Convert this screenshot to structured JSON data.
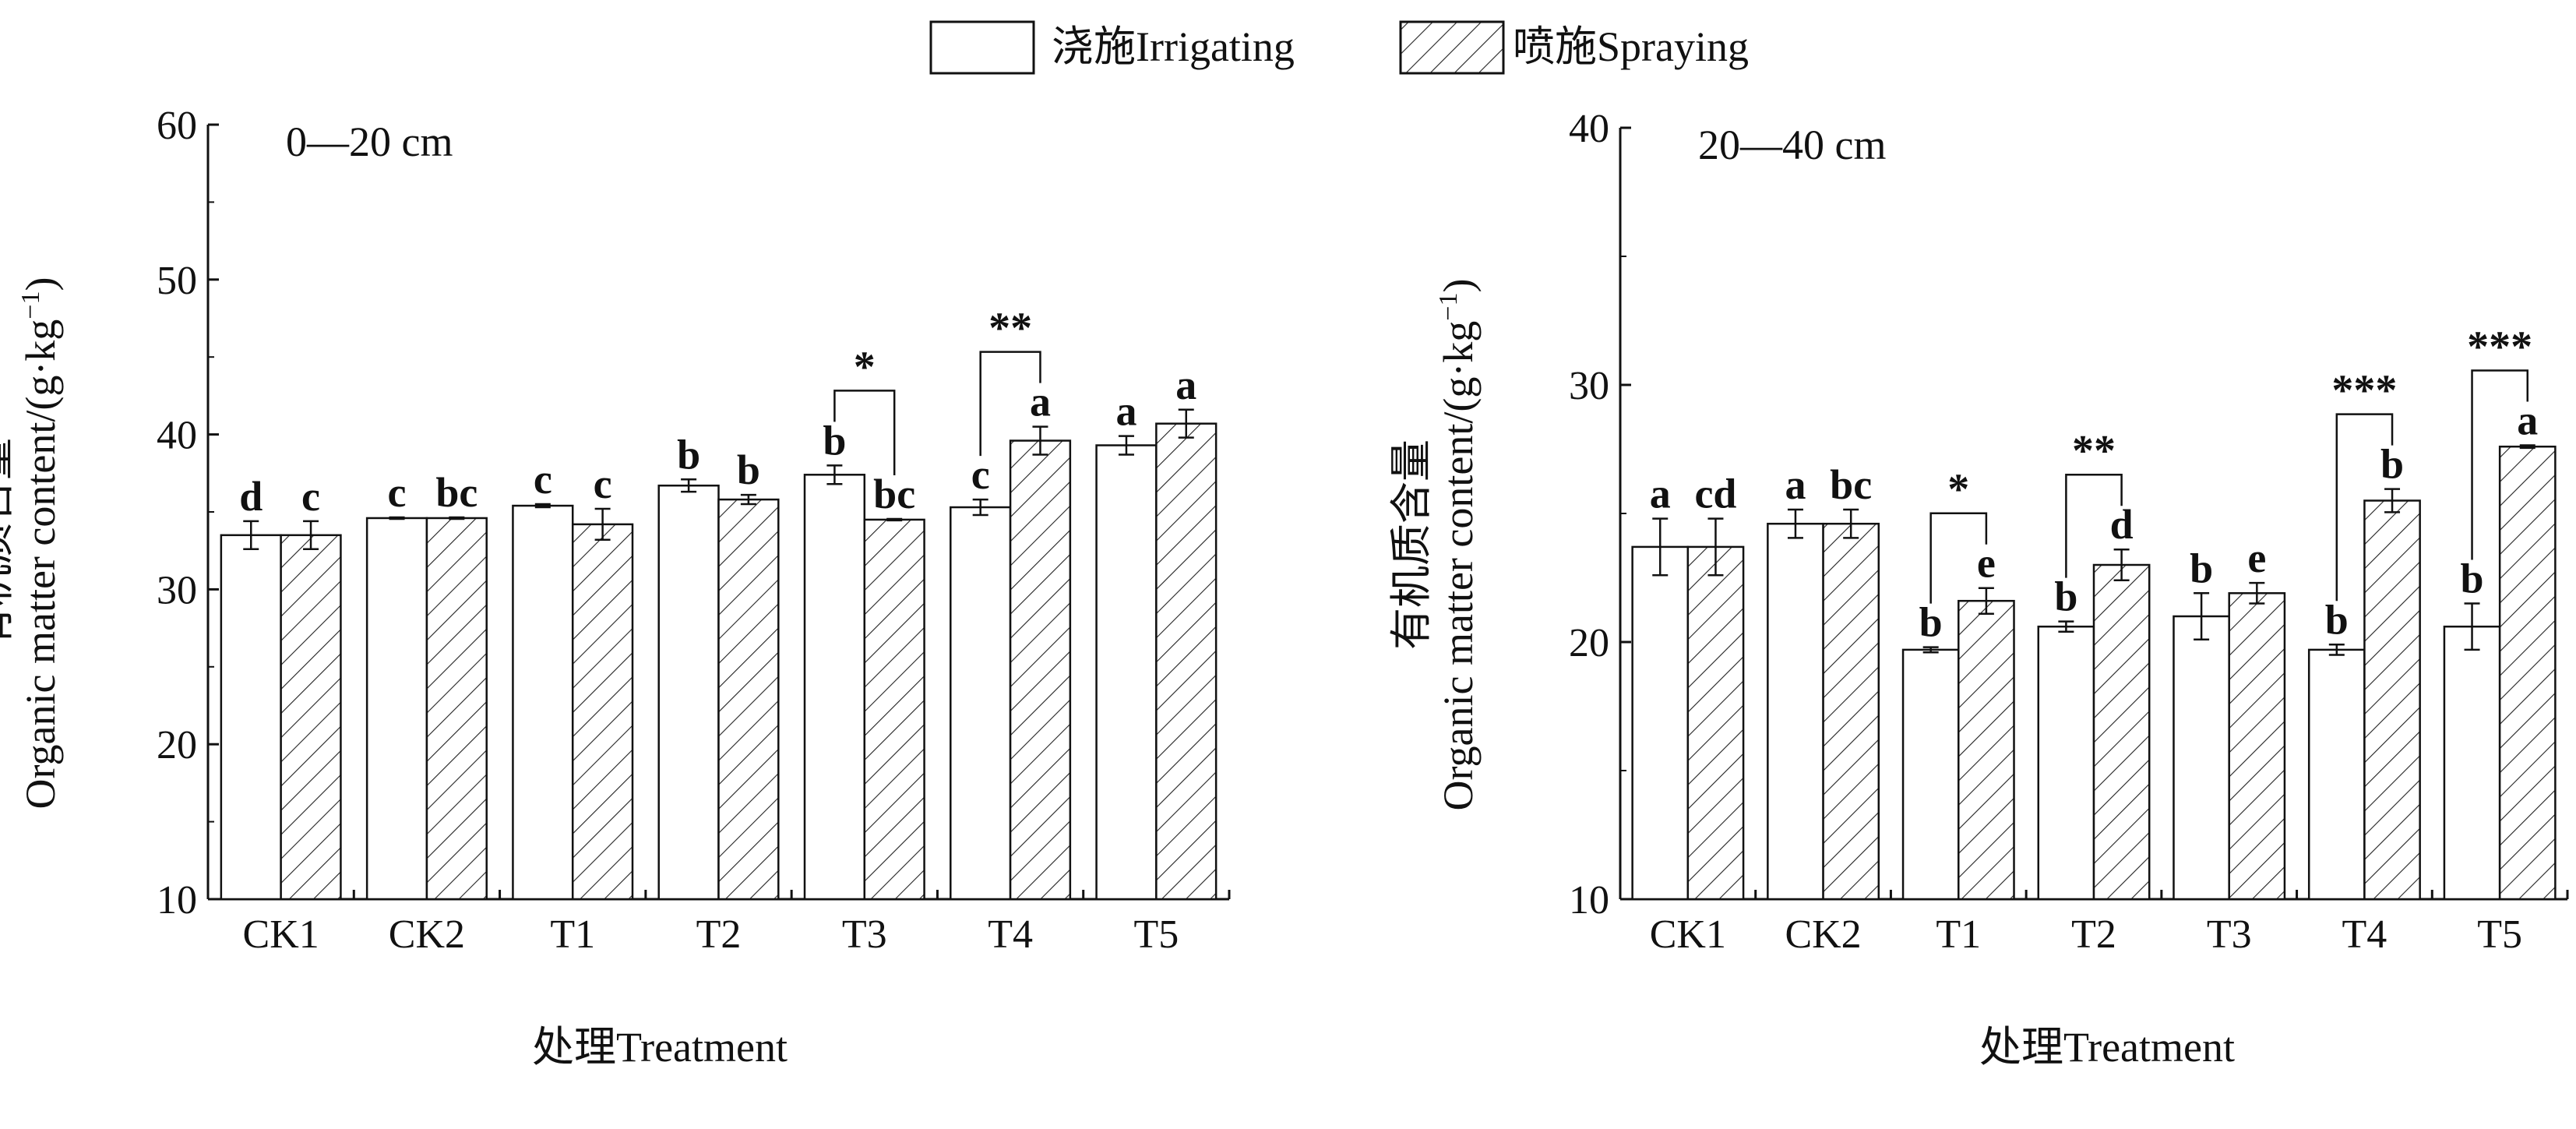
{
  "legend": {
    "irrigating": "浇施Irrigating",
    "spraying": "喷施Spraying"
  },
  "colors": {
    "axis": "#111111",
    "bar_fill": "#ffffff",
    "hatch": "#222222"
  },
  "chart_data": [
    {
      "type": "bar",
      "title": "0—20 cm",
      "xlabel": "处理Treatment",
      "ylabel_cn": "有机质含量",
      "ylabel_en": "Organic matter content/(g·kg",
      "ylabel_sup": "−1",
      "ylabel_close": ")",
      "ylim": [
        10,
        60
      ],
      "yticks": [
        10,
        20,
        30,
        40,
        50,
        60
      ],
      "categories": [
        "CK1",
        "CK2",
        "T1",
        "T2",
        "T3",
        "T4",
        "T5"
      ],
      "series": [
        {
          "name": "浇施Irrigating",
          "values": [
            33.5,
            34.6,
            35.4,
            36.7,
            37.4,
            35.3,
            39.3
          ],
          "errors": [
            0.9,
            0.05,
            0.1,
            0.4,
            0.6,
            0.5,
            0.6
          ],
          "letters": [
            "d",
            "c",
            "c",
            "b",
            "b",
            "c",
            "a"
          ]
        },
        {
          "name": "喷施Spraying",
          "values": [
            33.5,
            34.6,
            34.2,
            35.8,
            34.5,
            39.6,
            40.7
          ],
          "errors": [
            0.9,
            0.05,
            1.0,
            0.3,
            0.05,
            0.9,
            0.9
          ],
          "letters": [
            "c",
            "bc",
            "c",
            "b",
            "bc",
            "a",
            "a"
          ]
        }
      ],
      "significance": [
        {
          "category": "T3",
          "mark": "*"
        },
        {
          "category": "T4",
          "mark": "**"
        }
      ]
    },
    {
      "type": "bar",
      "title": "20—40 cm",
      "xlabel": "处理Treatment",
      "ylabel_cn": "有机质含量",
      "ylabel_en": "Organic matter content/(g·kg",
      "ylabel_sup": "−1",
      "ylabel_close": ")",
      "ylim": [
        10,
        40
      ],
      "yticks": [
        10,
        20,
        30,
        40
      ],
      "categories": [
        "CK1",
        "CK2",
        "T1",
        "T2",
        "T3",
        "T4",
        "T5"
      ],
      "series": [
        {
          "name": "浇施Irrigating",
          "values": [
            23.7,
            24.6,
            19.7,
            20.6,
            21.0,
            19.7,
            20.6
          ],
          "errors": [
            1.1,
            0.55,
            0.1,
            0.2,
            0.9,
            0.2,
            0.9
          ],
          "letters": [
            "a",
            "a",
            "b",
            "b",
            "b",
            "b",
            "b"
          ]
        },
        {
          "name": "喷施Spraying",
          "values": [
            23.7,
            24.6,
            21.6,
            23.0,
            21.9,
            25.5,
            27.6
          ],
          "errors": [
            1.1,
            0.55,
            0.5,
            0.6,
            0.4,
            0.45,
            0.05
          ],
          "letters": [
            "cd",
            "bc",
            "e",
            "d",
            "e",
            "b",
            "a"
          ]
        }
      ],
      "significance": [
        {
          "category": "T1",
          "mark": "*"
        },
        {
          "category": "T2",
          "mark": "**"
        },
        {
          "category": "T4",
          "mark": "***"
        },
        {
          "category": "T5",
          "mark": "***"
        }
      ]
    }
  ]
}
